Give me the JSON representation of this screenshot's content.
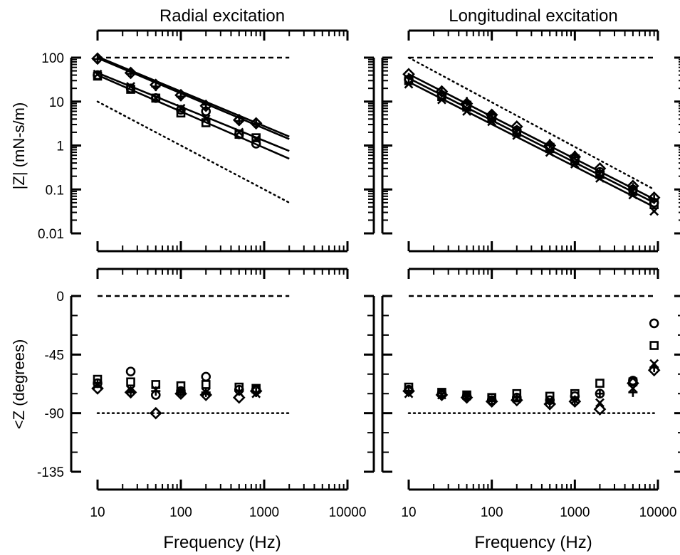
{
  "titles": [
    "Radial excitation",
    "Longitudinal excitation"
  ],
  "ylabel_magnitude": "|Z| (mN-s/m)",
  "ylabel_phase": "<Z (degrees)",
  "xlabel": "Frequency (Hz)",
  "colors": {
    "ink": "#000000",
    "background": "#ffffff"
  },
  "chart_data": [
    {
      "type": "scatter",
      "panel": "radial-magnitude",
      "title": "Radial excitation",
      "ylabel": "|Z| (mN-s/m)",
      "xscale": "log",
      "yscale": "log",
      "xlim": [
        10,
        10000
      ],
      "ylim": [
        0.01,
        100
      ],
      "yticks": [
        100,
        10,
        1,
        0.1,
        0.01
      ],
      "ytick_labels": [
        "100",
        "10",
        "1",
        "0.1",
        "0.01"
      ],
      "x": [
        10,
        25,
        50,
        100,
        200,
        500,
        800
      ],
      "series": [
        {
          "marker": "diamond",
          "values": [
            95,
            45,
            24,
            14,
            8,
            3.8,
            3.2
          ]
        },
        {
          "marker": "plus",
          "values": [
            92,
            43,
            22,
            13,
            8.5,
            3.6,
            3.1
          ]
        },
        {
          "marker": "cross",
          "values": [
            42,
            22,
            12,
            7,
            4,
            2,
            1.4
          ]
        },
        {
          "marker": "circle",
          "values": [
            40,
            20,
            12,
            6.5,
            6,
            1.8,
            1.1
          ]
        },
        {
          "marker": "square",
          "values": [
            38,
            19,
            12,
            5.5,
            3.3,
            1.8,
            1.5
          ]
        }
      ],
      "fit_lines": [
        {
          "x": [
            10,
            2000
          ],
          "y": [
            105,
            1.6
          ]
        },
        {
          "x": [
            10,
            2000
          ],
          "y": [
            98,
            1.4
          ]
        },
        {
          "x": [
            10,
            2000
          ],
          "y": [
            45,
            0.75
          ]
        },
        {
          "x": [
            10,
            2000
          ],
          "y": [
            40,
            0.5
          ]
        }
      ],
      "reference_lines": [
        {
          "style": "dashed",
          "x": [
            10,
            2000
          ],
          "y": [
            100,
            100
          ]
        },
        {
          "style": "dotted",
          "x": [
            10,
            2000
          ],
          "y": [
            10,
            0.05
          ]
        }
      ]
    },
    {
      "type": "scatter",
      "panel": "longitudinal-magnitude",
      "title": "Longitudinal excitation",
      "xscale": "log",
      "yscale": "log",
      "xlim": [
        10,
        10000
      ],
      "ylim": [
        0.01,
        100
      ],
      "x": [
        10,
        25,
        50,
        100,
        200,
        500,
        1000,
        2000,
        5000,
        9000
      ],
      "series": [
        {
          "marker": "diamond",
          "values": [
            42,
            17,
            9,
            5,
            2.7,
            1,
            0.55,
            0.3,
            0.12,
            0.065
          ]
        },
        {
          "marker": "plus",
          "values": [
            35,
            16,
            10,
            5,
            2.3,
            1.1,
            0.6,
            0.25,
            0.11,
            0.06
          ]
        },
        {
          "marker": "circle",
          "values": [
            32,
            14,
            8,
            4.5,
            2.2,
            0.9,
            0.5,
            0.25,
            0.1,
            0.05
          ]
        },
        {
          "marker": "square",
          "values": [
            30,
            13,
            7.5,
            4.2,
            2,
            0.85,
            0.45,
            0.22,
            0.09,
            0.045
          ]
        },
        {
          "marker": "cross",
          "values": [
            25,
            11,
            6,
            3.5,
            1.7,
            0.7,
            0.38,
            0.18,
            0.075,
            0.032
          ]
        }
      ],
      "fit_lines": [
        {
          "x": [
            10,
            9000
          ],
          "y": [
            42,
            0.06
          ]
        },
        {
          "x": [
            10,
            9000
          ],
          "y": [
            34,
            0.05
          ]
        },
        {
          "x": [
            10,
            9000
          ],
          "y": [
            28,
            0.04
          ]
        }
      ],
      "reference_lines": [
        {
          "style": "dashed",
          "x": [
            10,
            9000
          ],
          "y": [
            100,
            100
          ]
        },
        {
          "style": "dotted",
          "x": [
            10,
            9000
          ],
          "y": [
            100,
            0.1
          ]
        }
      ]
    },
    {
      "type": "scatter",
      "panel": "radial-phase",
      "ylabel": "<Z (degrees)",
      "xlabel": "Frequency (Hz)",
      "xscale": "log",
      "xlim": [
        10,
        10000
      ],
      "ylim": [
        -135,
        0
      ],
      "yticks": [
        0,
        -45,
        -90,
        -135
      ],
      "ytick_labels": [
        "0",
        "-45",
        "-90",
        "-135"
      ],
      "xticks": [
        10,
        100,
        1000,
        10000
      ],
      "xtick_labels": [
        "10",
        "100",
        "1000",
        "10000"
      ],
      "x": [
        10,
        25,
        50,
        100,
        200,
        500,
        800
      ],
      "series": [
        {
          "marker": "square",
          "values": [
            -64,
            -66,
            -68,
            -69,
            -68,
            -70,
            -71
          ]
        },
        {
          "marker": "circle",
          "values": [
            -67,
            -58,
            -76,
            -73,
            -62,
            -72,
            -72
          ]
        },
        {
          "marker": "plus",
          "values": [
            -67,
            -74,
            -73,
            -74,
            -74,
            -73,
            -74
          ]
        },
        {
          "marker": "cross",
          "values": [
            -68,
            -72,
            -72,
            -73,
            -74,
            -74,
            -75
          ]
        },
        {
          "marker": "diamond",
          "values": [
            -71,
            -74,
            -90,
            -75,
            -76,
            -78,
            -73
          ]
        }
      ],
      "reference_lines": [
        {
          "style": "dashed",
          "x": [
            10,
            2000
          ],
          "y": [
            0,
            0
          ]
        },
        {
          "style": "dotted",
          "x": [
            10,
            2000
          ],
          "y": [
            -90,
            -90
          ]
        }
      ]
    },
    {
      "type": "scatter",
      "panel": "longitudinal-phase",
      "xlabel": "Frequency (Hz)",
      "xscale": "log",
      "xlim": [
        10,
        10000
      ],
      "ylim": [
        -135,
        0
      ],
      "xticks": [
        10,
        100,
        1000,
        10000
      ],
      "xtick_labels": [
        "10",
        "100",
        "1000",
        "10000"
      ],
      "x": [
        10,
        25,
        50,
        100,
        200,
        500,
        1000,
        2000,
        5000,
        9000
      ],
      "series": [
        {
          "marker": "square",
          "values": [
            -70,
            -74,
            -76,
            -78,
            -75,
            -77,
            -75,
            -67,
            -66,
            -38
          ]
        },
        {
          "marker": "circle",
          "values": [
            -72,
            -75,
            -77,
            -80,
            -78,
            -80,
            -77,
            -75,
            -65,
            -21
          ]
        },
        {
          "marker": "plus",
          "values": [
            -73,
            -75,
            -77,
            -80,
            -78,
            -82,
            -80,
            -75,
            -74,
            -55
          ]
        },
        {
          "marker": "cross",
          "values": [
            -75,
            -76,
            -77,
            -79,
            -79,
            -80,
            -80,
            -82,
            -71,
            -52
          ]
        },
        {
          "marker": "diamond",
          "values": [
            -73,
            -76,
            -78,
            -81,
            -80,
            -83,
            -81,
            -87,
            -67,
            -57
          ]
        }
      ],
      "reference_lines": [
        {
          "style": "dashed",
          "x": [
            10,
            9000
          ],
          "y": [
            0,
            0
          ]
        },
        {
          "style": "dotted",
          "x": [
            10,
            9000
          ],
          "y": [
            -90,
            -90
          ]
        }
      ]
    }
  ]
}
